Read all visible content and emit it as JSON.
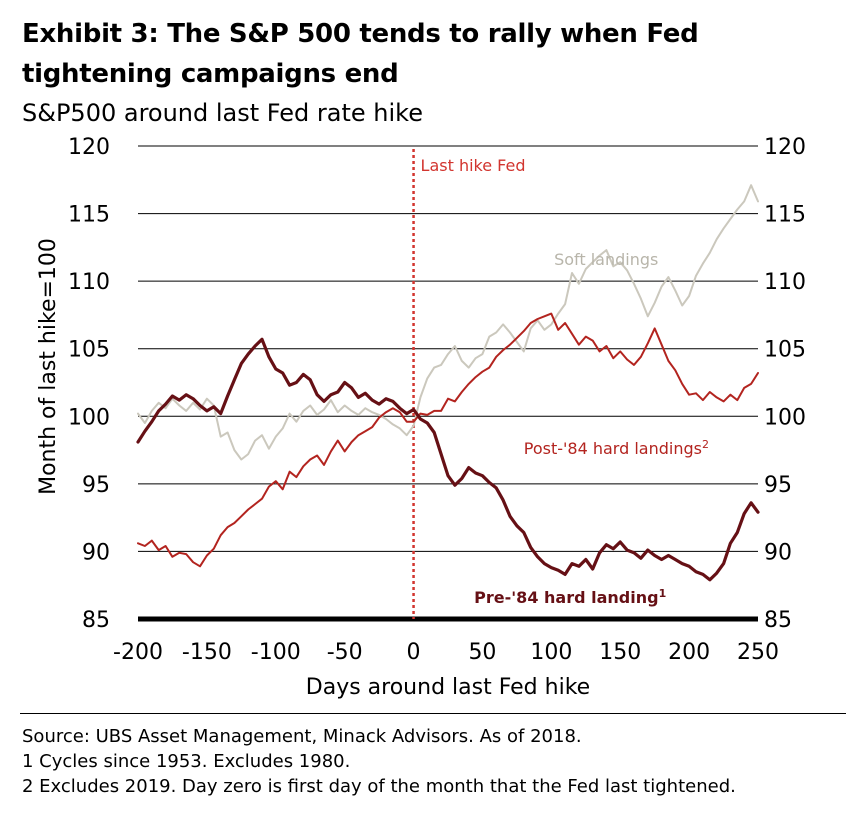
{
  "title": "Exhibit 3: The S&P 500 tends to rally when Fed tightening campaigns end",
  "subtitle": "S&P500 around last Fed rate hike",
  "notes": [
    "Source: UBS Asset Management, Minack Advisors. As of 2018.",
    "1 Cycles since 1953. Excludes 1980.",
    "2 Excludes 2019. Day zero is first day of the month that the Fed last tightened."
  ],
  "colors": {
    "soft": "#cbc8bd",
    "post84": "#b3241f",
    "pre84": "#661015",
    "marker": "#d2352f",
    "grid": "#000000"
  },
  "chart_data": {
    "type": "line",
    "xlabel": "Days around last Fed hike",
    "ylabel": "Month of last hike=100",
    "xlim": [
      -200,
      250
    ],
    "ylim": [
      85,
      120
    ],
    "xticks": [
      -200,
      -150,
      -100,
      -50,
      0,
      50,
      100,
      150,
      200,
      250
    ],
    "yticks": [
      85,
      90,
      95,
      100,
      105,
      110,
      115,
      120
    ],
    "grid": true,
    "vline": {
      "x": 0,
      "label": "Last hike Fed"
    },
    "series_labels": {
      "soft": "Soft landings",
      "post84": "Post-'84 hard landings",
      "post84_sup": "2",
      "pre84": "Pre-'84 hard landing",
      "pre84_sup": "1"
    },
    "series": [
      {
        "name": "Soft landings",
        "key": "soft",
        "x": [
          -200,
          -195,
          -190,
          -185,
          -180,
          -175,
          -170,
          -165,
          -160,
          -155,
          -150,
          -145,
          -140,
          -135,
          -130,
          -125,
          -120,
          -115,
          -110,
          -105,
          -100,
          -95,
          -90,
          -85,
          -80,
          -75,
          -70,
          -65,
          -60,
          -55,
          -50,
          -45,
          -40,
          -35,
          -30,
          -25,
          -20,
          -15,
          -10,
          -5,
          0,
          5,
          10,
          15,
          20,
          25,
          30,
          35,
          40,
          45,
          50,
          55,
          60,
          65,
          70,
          75,
          80,
          85,
          90,
          95,
          100,
          105,
          110,
          115,
          120,
          125,
          130,
          135,
          140,
          145,
          150,
          155,
          160,
          165,
          170,
          175,
          180,
          185,
          190,
          195,
          200,
          205,
          210,
          215,
          220,
          225,
          230,
          235,
          240,
          245,
          250
        ],
        "values": [
          100.2,
          99.5,
          100.4,
          101,
          100.6,
          101.3,
          100.8,
          100.4,
          101,
          100.5,
          101.3,
          100.8,
          98.5,
          98.8,
          97.5,
          96.8,
          97.2,
          98.2,
          98.6,
          97.6,
          98.5,
          99.1,
          100.2,
          99.6,
          100.4,
          100.8,
          100.1,
          100.5,
          101.2,
          100.3,
          100.8,
          100.4,
          100.1,
          100.6,
          100.3,
          100.1,
          99.8,
          99.4,
          99.1,
          98.6,
          99.3,
          101.4,
          102.8,
          103.6,
          103.8,
          104.6,
          105.2,
          104.1,
          103.6,
          104.3,
          104.6,
          105.9,
          106.2,
          106.8,
          106.2,
          105.5,
          104.8,
          106.5,
          107.1,
          106.4,
          106.8,
          107.6,
          108.3,
          110.6,
          109.8,
          110.9,
          111.4,
          111.9,
          112.3,
          111.1,
          111.4,
          110.8,
          109.8,
          108.7,
          107.4,
          108.4,
          109.6,
          110.3,
          109.3,
          108.2,
          108.9,
          110.4,
          111.3,
          112.1,
          113.1,
          113.9,
          114.6,
          115.3,
          115.9,
          117.1,
          115.9
        ]
      },
      {
        "name": "Post-'84 hard landings",
        "key": "post84",
        "x": [
          -200,
          -195,
          -190,
          -185,
          -180,
          -175,
          -170,
          -165,
          -160,
          -155,
          -150,
          -145,
          -140,
          -135,
          -130,
          -125,
          -120,
          -115,
          -110,
          -105,
          -100,
          -95,
          -90,
          -85,
          -80,
          -75,
          -70,
          -65,
          -60,
          -55,
          -50,
          -45,
          -40,
          -35,
          -30,
          -25,
          -20,
          -15,
          -10,
          -5,
          0,
          5,
          10,
          15,
          20,
          25,
          30,
          35,
          40,
          45,
          50,
          55,
          60,
          65,
          70,
          75,
          80,
          85,
          90,
          95,
          100,
          105,
          110,
          115,
          120,
          125,
          130,
          135,
          140,
          145,
          150,
          155,
          160,
          165,
          170,
          175,
          180,
          185,
          190,
          195,
          200,
          205,
          210,
          215,
          220,
          225,
          230,
          235,
          240,
          245,
          250
        ],
        "values": [
          90.6,
          90.4,
          90.8,
          90.1,
          90.4,
          89.6,
          89.9,
          89.8,
          89.2,
          88.9,
          89.7,
          90.2,
          91.2,
          91.8,
          92.1,
          92.6,
          93.1,
          93.5,
          93.9,
          94.8,
          95.2,
          94.6,
          95.9,
          95.5,
          96.3,
          96.8,
          97.1,
          96.4,
          97.4,
          98.2,
          97.4,
          98.1,
          98.6,
          98.9,
          99.2,
          99.9,
          100.3,
          100.6,
          100.3,
          99.6,
          99.6,
          100.2,
          100.1,
          100.4,
          100.4,
          101.3,
          101.1,
          101.8,
          102.4,
          102.9,
          103.3,
          103.6,
          104.4,
          104.9,
          105.3,
          105.8,
          106.3,
          106.9,
          107.2,
          107.4,
          107.6,
          106.4,
          106.9,
          106.1,
          105.3,
          105.9,
          105.6,
          104.8,
          105.2,
          104.3,
          104.8,
          104.2,
          103.8,
          104.4,
          105.4,
          106.5,
          105.3,
          104.1,
          103.4,
          102.4,
          101.6,
          101.7,
          101.2,
          101.8,
          101.4,
          101.1,
          101.6,
          101.2,
          102.1,
          102.4,
          103.2
        ]
      },
      {
        "name": "Pre-'84 hard landing",
        "key": "pre84",
        "x": [
          -200,
          -195,
          -190,
          -185,
          -180,
          -175,
          -170,
          -165,
          -160,
          -155,
          -150,
          -145,
          -140,
          -135,
          -130,
          -125,
          -120,
          -115,
          -110,
          -105,
          -100,
          -95,
          -90,
          -85,
          -80,
          -75,
          -70,
          -65,
          -60,
          -55,
          -50,
          -45,
          -40,
          -35,
          -30,
          -25,
          -20,
          -15,
          -10,
          -5,
          0,
          5,
          10,
          15,
          20,
          25,
          30,
          35,
          40,
          45,
          50,
          55,
          60,
          65,
          70,
          75,
          80,
          85,
          90,
          95,
          100,
          105,
          110,
          115,
          120,
          125,
          130,
          135,
          140,
          145,
          150,
          155,
          160,
          165,
          170,
          175,
          180,
          185,
          190,
          195,
          200,
          205,
          210,
          215,
          220,
          225,
          230,
          235,
          240,
          245,
          250
        ],
        "values": [
          98.1,
          98.9,
          99.6,
          100.4,
          100.9,
          101.5,
          101.2,
          101.6,
          101.3,
          100.8,
          100.4,
          100.7,
          100.2,
          101.5,
          102.7,
          103.9,
          104.6,
          105.2,
          105.7,
          104.4,
          103.5,
          103.2,
          102.3,
          102.5,
          103.1,
          102.7,
          101.6,
          101.1,
          101.6,
          101.8,
          102.5,
          102.1,
          101.4,
          101.7,
          101.2,
          100.9,
          101.3,
          101.1,
          100.6,
          100.2,
          100.5,
          99.8,
          99.5,
          98.8,
          97.2,
          95.6,
          94.9,
          95.4,
          96.2,
          95.8,
          95.6,
          95.1,
          94.7,
          93.8,
          92.6,
          91.9,
          91.4,
          90.3,
          89.6,
          89.1,
          88.8,
          88.6,
          88.3,
          89.1,
          88.9,
          89.4,
          88.7,
          89.9,
          90.5,
          90.2,
          90.7,
          90.1,
          89.9,
          89.5,
          90.1,
          89.7,
          89.4,
          89.7,
          89.4,
          89.1,
          88.9,
          88.5,
          88.3,
          87.9,
          88.4,
          89.1,
          90.6,
          91.4,
          92.8,
          93.6,
          92.9
        ]
      }
    ]
  }
}
